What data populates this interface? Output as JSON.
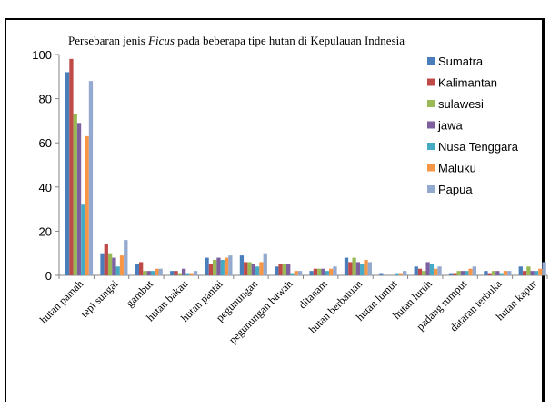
{
  "chart_data": {
    "type": "bar",
    "title_prefix": "Persebaran jenis ",
    "title_italic": "Ficus",
    "title_suffix": " pada beberapa tipe hutan di Kepulauan Indnesia",
    "ylim": [
      0,
      100
    ],
    "yticks": [
      "0",
      "20",
      "40",
      "60",
      "80",
      "100"
    ],
    "grid": false,
    "legend_position": "right",
    "categories": [
      "hutan pamah",
      "tepi sungai",
      "gambut",
      "hutan bakau",
      "hutan pantai",
      "pegunungan",
      "pegunungan bawah",
      "ditanam",
      "hutan berbatuan",
      "hutan lumut",
      "hutan luruh",
      "padang rumput",
      "dataran terbuka",
      "hutan kapur"
    ],
    "series": [
      {
        "name": "Sumatra",
        "color": "#4a7ebb",
        "values": [
          92,
          10,
          5,
          2,
          8,
          9,
          4,
          2,
          8,
          1,
          4,
          1,
          2,
          4
        ]
      },
      {
        "name": "Kalimantan",
        "color": "#be4b48",
        "values": [
          98,
          14,
          6,
          2,
          5,
          6,
          5,
          3,
          6,
          0,
          3,
          1,
          1,
          2
        ]
      },
      {
        "name": "sulawesi",
        "color": "#98b954",
        "values": [
          73,
          10,
          2,
          1,
          7,
          6,
          5,
          3,
          8,
          0,
          2,
          2,
          2,
          4
        ]
      },
      {
        "name": "jawa",
        "color": "#7d60a0",
        "values": [
          69,
          8,
          2,
          3,
          8,
          5,
          5,
          3,
          6,
          0,
          6,
          2,
          2,
          2
        ]
      },
      {
        "name": "Nusa Tenggara",
        "color": "#46aac5",
        "values": [
          32,
          4,
          2,
          1,
          7,
          4,
          1,
          2,
          5,
          1,
          5,
          2,
          1,
          2
        ]
      },
      {
        "name": "Maluku",
        "color": "#f79646",
        "values": [
          63,
          9,
          3,
          1,
          8,
          6,
          2,
          3,
          7,
          1,
          3,
          3,
          2,
          3
        ]
      },
      {
        "name": "Papua",
        "color": "#93a9cf",
        "values": [
          88,
          16,
          3,
          2,
          9,
          10,
          2,
          4,
          6,
          2,
          4,
          4,
          2,
          6
        ]
      }
    ]
  }
}
